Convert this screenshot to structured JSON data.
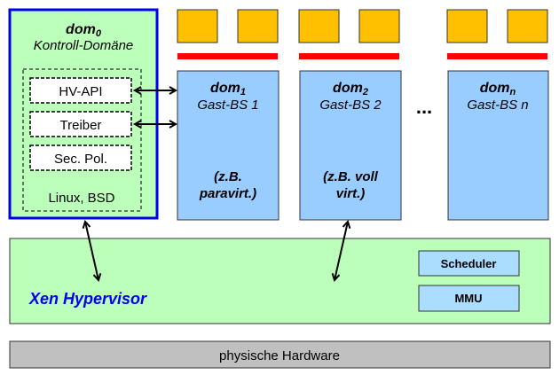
{
  "dom0": {
    "title": "dom",
    "subscript": "0",
    "subtitle": "Kontroll-Domäne",
    "components": [
      "HV-API",
      "Treiber",
      "Sec. Pol."
    ],
    "os": "Linux, BSD"
  },
  "guests": [
    {
      "title": "dom",
      "subscript": "1",
      "subtitle": "Gast-BS 1",
      "note_line1": "(z.B.",
      "note_line2": "paravirt.)"
    },
    {
      "title": "dom",
      "subscript": "2",
      "subtitle": "Gast-BS 2",
      "note_line1": "(z.B. voll",
      "note_line2": "virt.)"
    },
    {
      "title": "dom",
      "subscript": "n",
      "subtitle": "Gast-BS n",
      "note_line1": "",
      "note_line2": ""
    }
  ],
  "ellipsis": "...",
  "hypervisor": {
    "label": "Xen Hypervisor",
    "modules": [
      "Scheduler",
      "MMU"
    ]
  },
  "hardware": {
    "label": "physische Hardware"
  },
  "colors": {
    "dom0_fill": "#bbffbb",
    "dom0_border": "#0000ee",
    "guest_fill": "#99ccff",
    "vcpu": "#ffc000",
    "bar": "#ff0000",
    "hypervisor_label": "#0000ee",
    "hardware": "#c0c0c0",
    "module_fill": "#aaddff"
  }
}
